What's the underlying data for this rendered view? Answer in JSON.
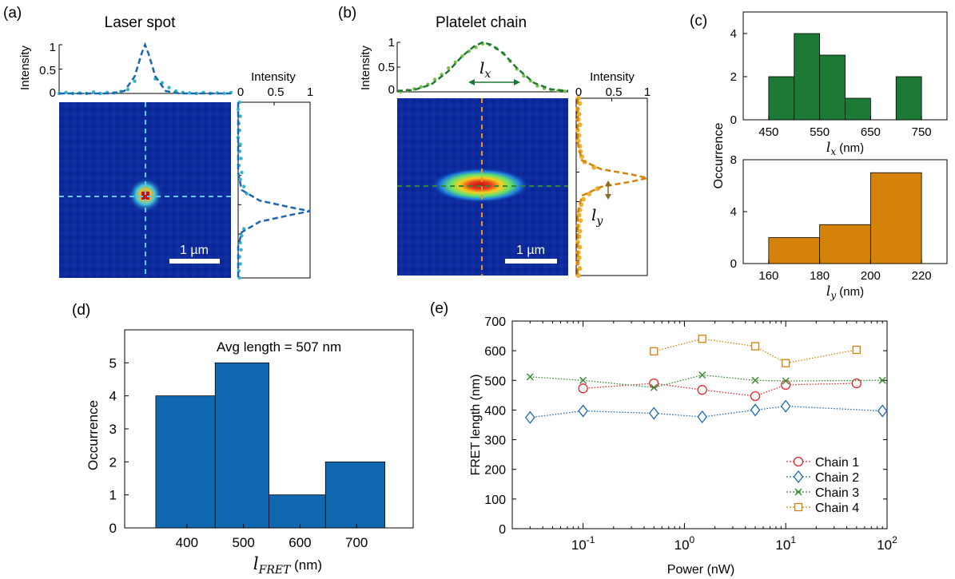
{
  "chart_data": [
    {
      "panel": "(a)",
      "type": "heatmap",
      "title": "Laser spot",
      "scalebar": "1 µm",
      "top_profile": {
        "ylabel": "Intensity",
        "yticks": [
          "0",
          "0.5",
          "1"
        ],
        "ylim": [
          0,
          1
        ],
        "xlim": [
          0,
          1
        ],
        "fit_x": [
          0.0,
          0.3,
          0.38,
          0.44,
          0.48,
          0.5,
          0.52,
          0.56,
          0.62,
          0.7,
          1.0
        ],
        "fit_y": [
          0.0,
          0.0,
          0.05,
          0.35,
          0.82,
          1.0,
          0.82,
          0.35,
          0.05,
          0.0,
          0.0
        ],
        "dots_x": [
          0.0,
          0.04,
          0.08,
          0.12,
          0.16,
          0.2,
          0.24,
          0.28,
          0.32,
          0.36,
          0.4,
          0.44,
          0.56,
          0.6,
          0.64,
          0.68,
          0.72,
          0.76,
          0.8,
          0.84,
          0.88,
          0.92,
          0.96,
          1.0
        ],
        "dots_y": [
          0.0,
          0.02,
          0.0,
          0.01,
          0.0,
          0.03,
          0.0,
          0.02,
          0.01,
          0.04,
          0.08,
          0.25,
          0.3,
          0.22,
          0.12,
          0.05,
          0.02,
          0.01,
          0.0,
          0.02,
          0.0,
          0.01,
          0.0,
          0.02
        ]
      },
      "side_profile": {
        "xlabel": "Intensity",
        "xticks": [
          "0",
          "0.5",
          "1"
        ],
        "xlim": [
          0,
          1
        ],
        "ylim": [
          0,
          1
        ],
        "fit_pos": [
          0.0,
          0.4,
          0.5,
          0.56,
          0.6,
          0.62,
          0.64,
          0.68,
          0.74,
          0.82,
          1.0
        ],
        "fit_int": [
          0.0,
          0.0,
          0.05,
          0.3,
          0.75,
          1.0,
          0.75,
          0.3,
          0.05,
          0.0,
          0.0
        ],
        "dots_pos": [
          0.0,
          0.04,
          0.08,
          0.12,
          0.16,
          0.2,
          0.24,
          0.28,
          0.32,
          0.36,
          0.4,
          0.44,
          0.48,
          0.52,
          0.72,
          0.76,
          0.8,
          0.84,
          0.88,
          0.92,
          0.96,
          1.0
        ],
        "dots_int": [
          0.02,
          0.0,
          0.03,
          0.01,
          0.02,
          0.0,
          0.03,
          0.02,
          0.04,
          0.01,
          0.05,
          0.03,
          0.08,
          0.12,
          0.08,
          0.05,
          0.03,
          0.04,
          0.02,
          0.03,
          0.01,
          0.02
        ]
      }
    },
    {
      "panel": "(b)",
      "type": "heatmap",
      "title": "Platelet chain",
      "scalebar": "1 µm",
      "annotation_x": "l",
      "annotation_x_sub": "x",
      "annotation_y": "l",
      "annotation_y_sub": "y",
      "top_profile": {
        "ylabel": "Intensity",
        "yticks": [
          "0",
          "0.5",
          "1"
        ],
        "ylim": [
          0,
          1
        ],
        "xlim": [
          0,
          1
        ],
        "fit_x": [
          0.0,
          0.1,
          0.2,
          0.3,
          0.38,
          0.45,
          0.5,
          0.55,
          0.62,
          0.7,
          0.8,
          0.9,
          1.0
        ],
        "fit_y": [
          0.02,
          0.04,
          0.15,
          0.42,
          0.72,
          0.92,
          1.0,
          0.95,
          0.78,
          0.48,
          0.18,
          0.05,
          0.02
        ],
        "dots_x": [
          0.02,
          0.06,
          0.1,
          0.14,
          0.18,
          0.22,
          0.26,
          0.3,
          0.34,
          0.38,
          0.42,
          0.46,
          0.5,
          0.54,
          0.58,
          0.62,
          0.66,
          0.7,
          0.74,
          0.78,
          0.82,
          0.86,
          0.9,
          0.94,
          0.98
        ],
        "dots_y": [
          0.0,
          0.03,
          0.06,
          0.1,
          0.15,
          0.25,
          0.35,
          0.48,
          0.6,
          0.72,
          0.82,
          0.9,
          0.97,
          0.95,
          0.88,
          0.78,
          0.62,
          0.46,
          0.32,
          0.22,
          0.12,
          0.07,
          0.04,
          0.02,
          0.01
        ]
      },
      "side_profile": {
        "xlabel": "Intensity",
        "xticks": [
          "0",
          "0.5",
          "1"
        ],
        "xlim": [
          0,
          1
        ],
        "ylim": [
          0,
          1
        ],
        "fit_pos": [
          0.0,
          0.25,
          0.35,
          0.4,
          0.43,
          0.45,
          0.47,
          0.5,
          0.55,
          0.65,
          1.0
        ],
        "fit_int": [
          0.02,
          0.02,
          0.08,
          0.35,
          0.78,
          1.0,
          0.78,
          0.35,
          0.08,
          0.02,
          0.02
        ],
        "dots_pos": [
          0.0,
          0.03,
          0.06,
          0.09,
          0.12,
          0.15,
          0.18,
          0.21,
          0.24,
          0.27,
          0.3,
          0.33,
          0.36,
          0.39,
          0.51,
          0.54,
          0.57,
          0.6,
          0.63,
          0.66,
          0.69,
          0.72,
          0.75,
          0.78,
          0.81,
          0.84,
          0.87,
          0.9,
          0.93,
          0.96,
          1.0
        ],
        "dots_int": [
          0.03,
          0.05,
          0.02,
          0.04,
          0.03,
          0.05,
          0.02,
          0.04,
          0.03,
          0.05,
          0.06,
          0.08,
          0.12,
          0.25,
          0.3,
          0.18,
          0.1,
          0.07,
          0.05,
          0.04,
          0.06,
          0.03,
          0.05,
          0.04,
          0.02,
          0.05,
          0.03,
          0.04,
          0.02,
          0.05,
          0.03
        ]
      }
    },
    {
      "panel": "(c)",
      "type": "bar",
      "subplots": [
        {
          "xlabel_sym": "l",
          "xlabel_sub": "x",
          "xlabel_unit": " (nm)",
          "edges": [
            450,
            500,
            550,
            600,
            650,
            700,
            750
          ],
          "values": [
            2,
            4,
            3,
            1,
            0,
            2
          ],
          "xlim": [
            400,
            800
          ],
          "xticks": [
            450,
            550,
            650,
            750
          ],
          "ylim": [
            0,
            5
          ],
          "yticks": [
            0,
            2,
            4
          ],
          "color": "#1d7a36"
        },
        {
          "xlabel_sym": "l",
          "xlabel_sub": "y",
          "xlabel_unit": " (nm)",
          "edges": [
            160,
            180,
            200,
            220
          ],
          "values": [
            2,
            3,
            7
          ],
          "xlim": [
            150,
            230
          ],
          "xticks": [
            160,
            180,
            200,
            220
          ],
          "ylim": [
            0,
            8
          ],
          "yticks": [
            0,
            4,
            8
          ],
          "color": "#d4820a"
        }
      ],
      "ylabel": "Occurrence"
    },
    {
      "panel": "(d)",
      "type": "bar",
      "annotation": "Avg length = 507 nm",
      "xlabel_sym": "l",
      "xlabel_sub": "FRET",
      "xlabel_unit": "  (nm)",
      "ylabel": "Occurrence",
      "edges": [
        345,
        450,
        545,
        645,
        750
      ],
      "values": [
        4,
        5,
        1,
        2
      ],
      "xlim": [
        290,
        800
      ],
      "xticks": [
        400,
        500,
        600,
        700
      ],
      "ylim": [
        0,
        6
      ],
      "yticks": [
        0,
        1,
        2,
        3,
        4,
        5
      ],
      "color": "#1068b0"
    },
    {
      "panel": "(e)",
      "type": "line",
      "xlabel": "Power (nW)",
      "ylabel": "FRET length (nm)",
      "xscale": "log",
      "xlim": [
        0.02,
        100
      ],
      "ylim": [
        0,
        700
      ],
      "yticks": [
        0,
        100,
        200,
        300,
        400,
        500,
        600,
        700
      ],
      "xtick_bases": [
        "10",
        "10",
        "10",
        "10"
      ],
      "xtick_exps": [
        "-1",
        "0",
        "1",
        "2"
      ],
      "xtick_values": [
        0.1,
        1,
        10,
        100
      ],
      "legend_position": "bottom-right",
      "series": [
        {
          "name": "Chain 1",
          "color": "#e8262a",
          "marker": "circle",
          "x": [
            0.1,
            0.5,
            1.5,
            5,
            10,
            50
          ],
          "y": [
            473,
            490,
            468,
            447,
            485,
            490
          ]
        },
        {
          "name": "Chain 2",
          "color": "#1a6ab0",
          "marker": "diamond",
          "x": [
            0.03,
            0.1,
            0.5,
            1.5,
            5,
            10,
            90
          ],
          "y": [
            375,
            397,
            389,
            377,
            400,
            413,
            397
          ]
        },
        {
          "name": "Chain 3",
          "color": "#2f8a2f",
          "marker": "x",
          "x": [
            0.03,
            0.1,
            0.5,
            1.5,
            5,
            10,
            90
          ],
          "y": [
            512,
            500,
            476,
            518,
            500,
            498,
            500
          ]
        },
        {
          "name": "Chain 4",
          "color": "#d4820a",
          "marker": "square",
          "x": [
            0.5,
            1.5,
            5,
            10,
            50
          ],
          "y": [
            598,
            640,
            615,
            558,
            603
          ]
        }
      ]
    }
  ]
}
